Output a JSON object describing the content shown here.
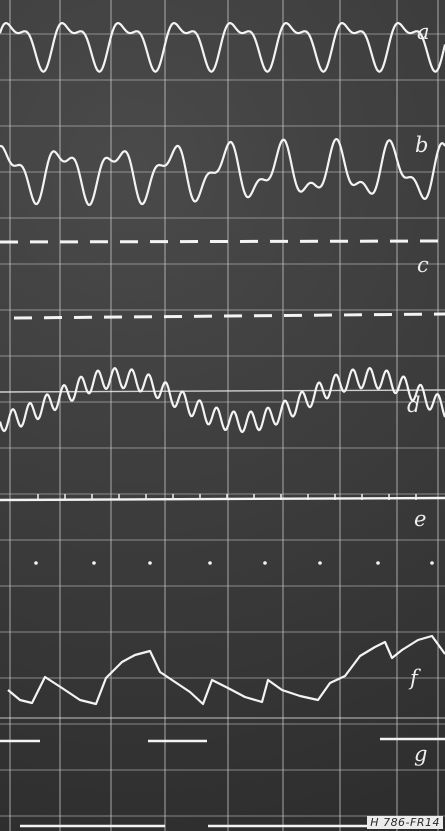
{
  "traces": [
    {
      "id": "a",
      "label": "a",
      "kind": "sine-beat"
    },
    {
      "id": "b",
      "label": "b",
      "kind": "sine-beat"
    },
    {
      "id": "c",
      "label": "c",
      "kind": "dashed-pair"
    },
    {
      "id": "d",
      "label": "d",
      "kind": "envelope-burst"
    },
    {
      "id": "e",
      "label": "e",
      "kind": "flat-dots"
    },
    {
      "id": "f",
      "label": "f",
      "kind": "sawtooth"
    },
    {
      "id": "g",
      "label": "g",
      "kind": "pulse-segments"
    }
  ],
  "plate_code": "H 786-FR14",
  "colors": {
    "trace": "#f3f3f3",
    "grid": "#cfcfcf",
    "background": "#3a3a3a"
  }
}
